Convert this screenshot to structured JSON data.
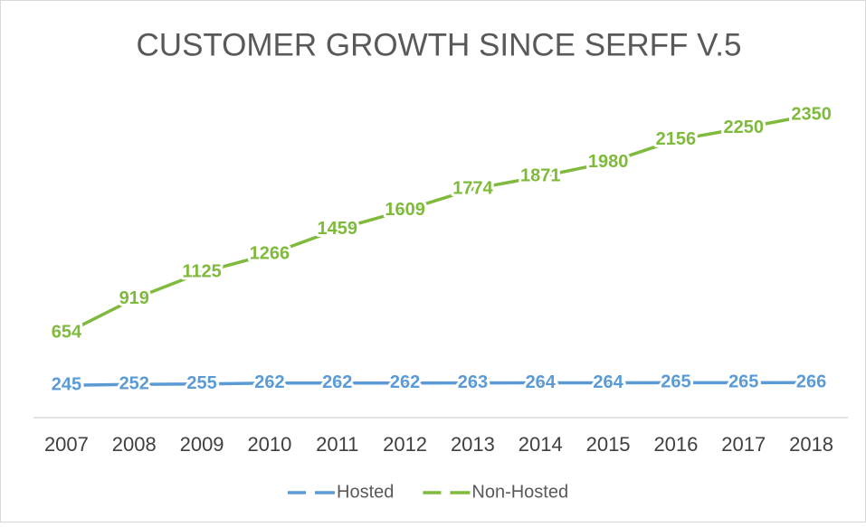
{
  "chart_data": {
    "type": "line",
    "title": "CUSTOMER GROWTH SINCE SERFF V.5",
    "categories": [
      "2007",
      "2008",
      "2009",
      "2010",
      "2011",
      "2012",
      "2013",
      "2014",
      "2015",
      "2016",
      "2017",
      "2018"
    ],
    "series": [
      {
        "name": "Hosted",
        "color": "#5b9bd5",
        "values": [
          245,
          252,
          255,
          262,
          262,
          262,
          263,
          264,
          264,
          265,
          265,
          266
        ]
      },
      {
        "name": "Non-Hosted",
        "color": "#7fba3c",
        "values": [
          654,
          919,
          1125,
          1266,
          1459,
          1609,
          1774,
          1871,
          1980,
          2156,
          2250,
          2350
        ]
      }
    ],
    "ylim": [
      0,
      2500
    ],
    "legend": "bottom",
    "data_labels": true
  }
}
